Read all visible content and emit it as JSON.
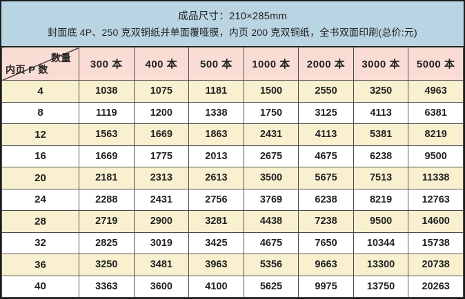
{
  "colors": {
    "banner_bg": "#b9d4e3",
    "header_bg": "#f9dcd3",
    "row_alt_bg": "#f8f0cf",
    "row_bg": "#ffffff",
    "grid_line": "#4c4c4c",
    "outer_border": "#1c1c1c",
    "text": "#222222"
  },
  "chart_data": {
    "type": "table",
    "title": "成品尺寸：210×285mm",
    "subtitle": "封面底 4P、250 克双铜纸并单面覆哑膜，内页 200 克双铜纸，全书双面印刷(总价:元)",
    "col_header_label": "数量",
    "row_header_label": "内页 P 数",
    "columns": [
      "300 本",
      "400 本",
      "500 本",
      "1000 本",
      "2000 本",
      "3000 本",
      "5000 本"
    ],
    "rows": [
      {
        "pages": "4",
        "prices": [
          1038,
          1075,
          1181,
          1500,
          2550,
          3250,
          4963
        ]
      },
      {
        "pages": "8",
        "prices": [
          1119,
          1200,
          1338,
          1750,
          3125,
          4113,
          6381
        ]
      },
      {
        "pages": "12",
        "prices": [
          1563,
          1669,
          1863,
          2431,
          4113,
          5381,
          8219
        ]
      },
      {
        "pages": "16",
        "prices": [
          1669,
          1775,
          2013,
          2675,
          4675,
          6238,
          9500
        ]
      },
      {
        "pages": "20",
        "prices": [
          2181,
          2313,
          2613,
          3500,
          5675,
          7513,
          11338
        ]
      },
      {
        "pages": "24",
        "prices": [
          2288,
          2431,
          2756,
          3769,
          6238,
          8219,
          12763
        ]
      },
      {
        "pages": "28",
        "prices": [
          2719,
          2900,
          3281,
          4438,
          7238,
          9500,
          14600
        ]
      },
      {
        "pages": "32",
        "prices": [
          2825,
          3019,
          3425,
          4675,
          7650,
          10344,
          15738
        ]
      },
      {
        "pages": "36",
        "prices": [
          3250,
          3481,
          3963,
          5356,
          9663,
          13300,
          20738
        ]
      },
      {
        "pages": "40",
        "prices": [
          3363,
          3600,
          4100,
          5625,
          9975,
          13750,
          20263
        ]
      }
    ]
  }
}
